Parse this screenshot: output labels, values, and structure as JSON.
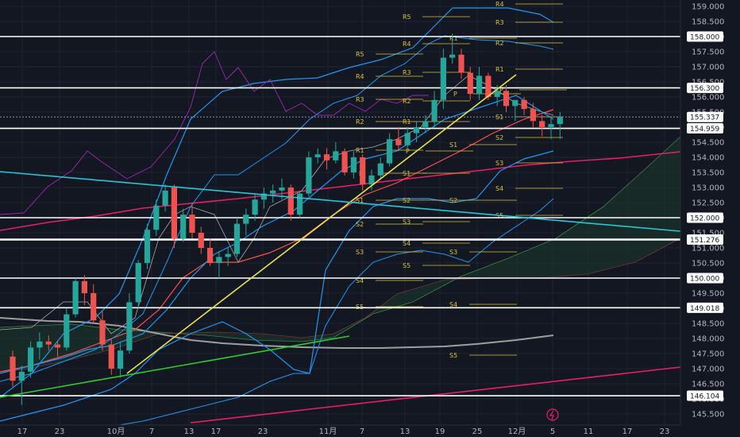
{
  "chart_data": {
    "type": "candlestick",
    "title": "",
    "xlabel": "",
    "ylabel": "",
    "ylim": [
      145.2,
      159.2
    ],
    "x_tick_labels": [
      "17",
      "23",
      "10月",
      "7",
      "13",
      "17",
      "23",
      "11月",
      "7",
      "13",
      "19",
      "25",
      "12月",
      "5",
      "11",
      "17",
      "23"
    ],
    "y_tick_labels": [
      "159.000",
      "158.500",
      "158.000",
      "157.500",
      "157.000",
      "156.500",
      "156.000",
      "155.500",
      "155.000",
      "154.500",
      "154.000",
      "153.500",
      "153.000",
      "152.500",
      "152.000",
      "151.500",
      "151.000",
      "150.500",
      "150.000",
      "149.500",
      "149.000",
      "148.500",
      "148.000",
      "147.500",
      "147.000",
      "146.500",
      "146.000",
      "145.500"
    ],
    "y_ticks": [
      159,
      158.5,
      158,
      157.5,
      157,
      156.5,
      156,
      155.5,
      155,
      154.5,
      154,
      153.5,
      153,
      152.5,
      152,
      151.5,
      151,
      150.5,
      150,
      149.5,
      149,
      148.5,
      148,
      147.5,
      147,
      146.5,
      146,
      145.5
    ],
    "price_tags": [
      "158.000",
      "156.300",
      "155.337",
      "154.959",
      "152.000",
      "151.276",
      "150.000",
      "149.018",
      "146.104"
    ],
    "horizontal_levels": [
      158.0,
      156.3,
      154.959,
      152.0,
      151.276,
      150.0,
      149.018,
      146.104
    ],
    "current_price": 155.337,
    "candles": [
      {
        "o": 147.4,
        "h": 147.6,
        "l": 146.4,
        "c": 146.6
      },
      {
        "o": 146.6,
        "h": 147.1,
        "l": 145.8,
        "c": 146.9
      },
      {
        "o": 146.9,
        "h": 147.9,
        "l": 146.7,
        "c": 147.7
      },
      {
        "o": 147.7,
        "h": 148.2,
        "l": 147.3,
        "c": 147.9
      },
      {
        "o": 147.9,
        "h": 148.1,
        "l": 147.6,
        "c": 147.8
      },
      {
        "o": 147.8,
        "h": 147.9,
        "l": 147.4,
        "c": 147.7
      },
      {
        "o": 147.7,
        "h": 149.0,
        "l": 147.6,
        "c": 148.8
      },
      {
        "o": 148.8,
        "h": 150.0,
        "l": 148.7,
        "c": 149.9
      },
      {
        "o": 149.9,
        "h": 150.1,
        "l": 149.1,
        "c": 149.5
      },
      {
        "o": 149.5,
        "h": 149.8,
        "l": 148.5,
        "c": 148.6
      },
      {
        "o": 148.6,
        "h": 148.9,
        "l": 147.6,
        "c": 147.8
      },
      {
        "o": 147.8,
        "h": 148.0,
        "l": 146.8,
        "c": 147.0
      },
      {
        "o": 147.0,
        "h": 147.9,
        "l": 146.7,
        "c": 147.6
      },
      {
        "o": 147.6,
        "h": 149.5,
        "l": 147.5,
        "c": 149.2
      },
      {
        "o": 149.2,
        "h": 150.6,
        "l": 149.0,
        "c": 150.5
      },
      {
        "o": 150.5,
        "h": 151.8,
        "l": 150.3,
        "c": 151.6
      },
      {
        "o": 151.6,
        "h": 152.6,
        "l": 151.4,
        "c": 152.4
      },
      {
        "o": 152.4,
        "h": 153.1,
        "l": 152.2,
        "c": 152.9
      },
      {
        "o": 153.0,
        "h": 153.1,
        "l": 151.0,
        "c": 151.3
      },
      {
        "o": 151.3,
        "h": 152.3,
        "l": 151.2,
        "c": 152.1
      },
      {
        "o": 152.1,
        "h": 152.5,
        "l": 151.3,
        "c": 151.5
      },
      {
        "o": 151.5,
        "h": 151.7,
        "l": 150.8,
        "c": 151.0
      },
      {
        "o": 151.0,
        "h": 151.3,
        "l": 150.4,
        "c": 150.5
      },
      {
        "o": 150.5,
        "h": 150.9,
        "l": 150.0,
        "c": 150.7
      },
      {
        "o": 150.7,
        "h": 151.0,
        "l": 150.4,
        "c": 150.8
      },
      {
        "o": 150.8,
        "h": 152.0,
        "l": 150.7,
        "c": 151.8
      },
      {
        "o": 151.8,
        "h": 152.3,
        "l": 151.4,
        "c": 152.1
      },
      {
        "o": 152.1,
        "h": 152.8,
        "l": 151.9,
        "c": 152.6
      },
      {
        "o": 152.6,
        "h": 153.0,
        "l": 152.3,
        "c": 152.8
      },
      {
        "o": 152.8,
        "h": 153.1,
        "l": 152.5,
        "c": 152.9
      },
      {
        "o": 152.9,
        "h": 153.3,
        "l": 152.6,
        "c": 153.0
      },
      {
        "o": 153.0,
        "h": 153.1,
        "l": 151.9,
        "c": 152.1
      },
      {
        "o": 152.1,
        "h": 152.9,
        "l": 152.0,
        "c": 152.8
      },
      {
        "o": 152.8,
        "h": 154.2,
        "l": 152.7,
        "c": 154.0
      },
      {
        "o": 154.0,
        "h": 154.3,
        "l": 153.8,
        "c": 154.1
      },
      {
        "o": 154.1,
        "h": 154.3,
        "l": 153.6,
        "c": 153.9
      },
      {
        "o": 153.9,
        "h": 154.5,
        "l": 153.8,
        "c": 154.2
      },
      {
        "o": 154.2,
        "h": 154.3,
        "l": 153.4,
        "c": 153.5
      },
      {
        "o": 153.5,
        "h": 154.2,
        "l": 153.3,
        "c": 154.0
      },
      {
        "o": 154.0,
        "h": 154.1,
        "l": 152.9,
        "c": 153.1
      },
      {
        "o": 153.1,
        "h": 153.6,
        "l": 152.9,
        "c": 153.4
      },
      {
        "o": 153.4,
        "h": 154.0,
        "l": 153.3,
        "c": 153.8
      },
      {
        "o": 153.8,
        "h": 154.8,
        "l": 153.7,
        "c": 154.6
      },
      {
        "o": 154.6,
        "h": 155.0,
        "l": 154.2,
        "c": 154.4
      },
      {
        "o": 154.4,
        "h": 155.0,
        "l": 154.3,
        "c": 154.8
      },
      {
        "o": 154.8,
        "h": 155.2,
        "l": 154.5,
        "c": 155.0
      },
      {
        "o": 155.0,
        "h": 155.4,
        "l": 154.8,
        "c": 155.2
      },
      {
        "o": 155.2,
        "h": 156.2,
        "l": 155.0,
        "c": 155.9
      },
      {
        "o": 155.9,
        "h": 157.6,
        "l": 155.6,
        "c": 157.3
      },
      {
        "o": 157.3,
        "h": 158.1,
        "l": 157.1,
        "c": 157.4
      },
      {
        "o": 157.4,
        "h": 157.6,
        "l": 156.6,
        "c": 156.8
      },
      {
        "o": 156.8,
        "h": 157.0,
        "l": 155.9,
        "c": 156.1
      },
      {
        "o": 156.1,
        "h": 157.0,
        "l": 155.9,
        "c": 156.7
      },
      {
        "o": 156.7,
        "h": 156.8,
        "l": 155.9,
        "c": 156.0
      },
      {
        "o": 156.0,
        "h": 156.4,
        "l": 155.7,
        "c": 156.2
      },
      {
        "o": 156.2,
        "h": 156.4,
        "l": 155.5,
        "c": 155.7
      },
      {
        "o": 155.7,
        "h": 155.9,
        "l": 155.2,
        "c": 155.9
      },
      {
        "o": 155.9,
        "h": 156.0,
        "l": 155.4,
        "c": 155.6
      },
      {
        "o": 155.6,
        "h": 155.8,
        "l": 155.0,
        "c": 155.2
      },
      {
        "o": 155.2,
        "h": 155.4,
        "l": 154.7,
        "c": 155.0
      },
      {
        "o": 155.0,
        "h": 155.3,
        "l": 154.6,
        "c": 155.1
      },
      {
        "o": 155.1,
        "h": 155.5,
        "l": 154.6,
        "c": 155.34
      }
    ],
    "pivot_labels": [
      {
        "t": "R5",
        "x": 507,
        "y": 18
      },
      {
        "t": "R4",
        "x": 507,
        "y": 52
      },
      {
        "t": "R3",
        "x": 507,
        "y": 88
      },
      {
        "t": "R2",
        "x": 507,
        "y": 124
      },
      {
        "t": "R1",
        "x": 507,
        "y": 150
      },
      {
        "t": "P",
        "x": 511,
        "y": 187
      },
      {
        "t": "S1",
        "x": 507,
        "y": 215
      },
      {
        "t": "S2",
        "x": 507,
        "y": 249
      },
      {
        "t": "S3",
        "x": 507,
        "y": 276
      },
      {
        "t": "S4",
        "x": 507,
        "y": 303
      },
      {
        "t": "S5",
        "x": 507,
        "y": 331
      },
      {
        "t": "R5",
        "x": 448,
        "y": 65
      },
      {
        "t": "R4",
        "x": 448,
        "y": 93
      },
      {
        "t": "R3",
        "x": 448,
        "y": 122
      },
      {
        "t": "R2",
        "x": 448,
        "y": 150
      },
      {
        "t": "R1",
        "x": 448,
        "y": 186
      },
      {
        "t": "P",
        "x": 452,
        "y": 215
      },
      {
        "t": "S1",
        "x": 448,
        "y": 249
      },
      {
        "t": "S2",
        "x": 448,
        "y": 279
      },
      {
        "t": "S3",
        "x": 448,
        "y": 314
      },
      {
        "t": "S4",
        "x": 448,
        "y": 350
      },
      {
        "t": "S5",
        "x": 448,
        "y": 383
      },
      {
        "t": "R1",
        "x": 566,
        "y": 45
      },
      {
        "t": "P",
        "x": 571,
        "y": 115
      },
      {
        "t": "S1",
        "x": 566,
        "y": 179
      },
      {
        "t": "S2",
        "x": 566,
        "y": 249
      },
      {
        "t": "S3",
        "x": 566,
        "y": 314
      },
      {
        "t": "S4",
        "x": 566,
        "y": 380
      },
      {
        "t": "S5",
        "x": 566,
        "y": 444
      },
      {
        "t": "R4",
        "x": 624,
        "y": 2
      },
      {
        "t": "R3",
        "x": 624,
        "y": 25
      },
      {
        "t": "R2",
        "x": 624,
        "y": 51
      },
      {
        "t": "R1",
        "x": 624,
        "y": 84
      },
      {
        "t": "P",
        "x": 629,
        "y": 110
      },
      {
        "t": "S1",
        "x": 624,
        "y": 144
      },
      {
        "t": "S2",
        "x": 624,
        "y": 170
      },
      {
        "t": "S3",
        "x": 624,
        "y": 202
      },
      {
        "t": "S4",
        "x": 624,
        "y": 234
      },
      {
        "t": "S5",
        "x": 624,
        "y": 268
      }
    ],
    "colors": {
      "background": "#131722",
      "grid": "#1f2330",
      "up": "#26a69a",
      "down": "#ef5350",
      "bollinger": "#2196f3",
      "ma_red": "#e91e63",
      "ema": "#ff4d4d",
      "ma_slow": "#9e9e9e",
      "rsi": "#9c27b0",
      "uptrend": "#e8e34a",
      "uptrend_green": "#2fcc2f",
      "downtrend": "#26c6da",
      "cloud": "#1b3b2b",
      "cloud_line": "#4caf50",
      "pivot": "#d8c23a",
      "level": "#ffffff",
      "axis_text": "#b2b5be"
    }
  }
}
